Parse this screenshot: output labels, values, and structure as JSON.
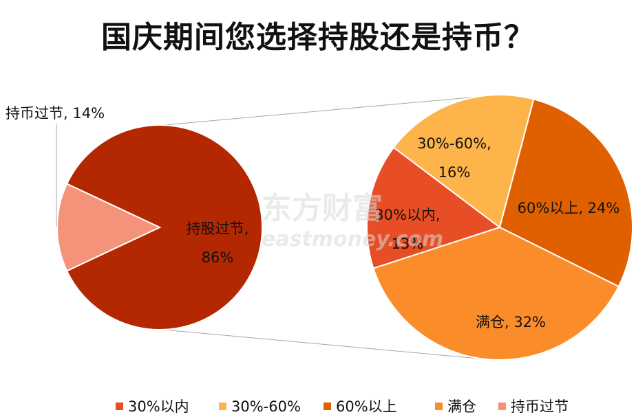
{
  "chart_data": {
    "type": "pie",
    "title": "国庆期间您选择持股还是持币？",
    "main_pie": {
      "slices": [
        {
          "name": "持股过节",
          "value": 86,
          "label": "持股过节,",
          "value_label": "86%",
          "color": "#b32800"
        },
        {
          "name": "持币过节",
          "value": 14,
          "label": "持币过节, 14%",
          "color": "#f4937a"
        }
      ]
    },
    "breakdown_pie": {
      "of": "持股过节",
      "slices": [
        {
          "name": "30%以内",
          "value": 13,
          "label": "30%以内,",
          "value_label": "13%",
          "color": "#e84e25"
        },
        {
          "name": "30%-60%",
          "value": 16,
          "label": "30%-60%,",
          "value_label": "16%",
          "color": "#fdb44a"
        },
        {
          "name": "60%以上",
          "value": 24,
          "label": "60%以上, 24%",
          "color": "#e06000"
        },
        {
          "name": "满仓",
          "value": 32,
          "label": "满仓, 32%",
          "color": "#fb8c2a"
        }
      ]
    },
    "legend": {
      "placement": "bottom",
      "items": [
        {
          "name": "30%以内",
          "color": "#e84e25"
        },
        {
          "name": "30%-60%",
          "color": "#fdb44a"
        },
        {
          "name": "60%以上",
          "color": "#e06000"
        },
        {
          "name": "满仓",
          "color": "#fb8c2a"
        },
        {
          "name": "持币过节",
          "color": "#f4937a"
        }
      ]
    }
  },
  "watermark": {
    "brand": "东方财富",
    "site": "eastmoney.com"
  }
}
